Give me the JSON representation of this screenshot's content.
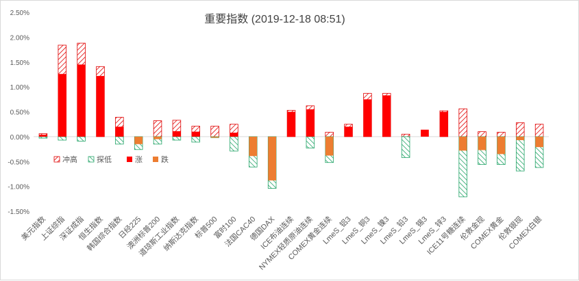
{
  "chart_data": {
    "type": "bar",
    "title": "重要指数 (2019-12-18 08:51)",
    "xlabel": "",
    "ylabel": "",
    "ylim": [
      -0.015,
      0.025
    ],
    "yticks": [
      -0.015,
      -0.01,
      -0.005,
      0,
      0.005,
      0.01,
      0.015,
      0.02,
      0.025
    ],
    "ytick_labels": [
      "-1.50%",
      "-1.00%",
      "-0.50%",
      "0.00%",
      "0.50%",
      "1.00%",
      "1.50%",
      "2.00%",
      "2.50%"
    ],
    "grid": false,
    "legend_position": "inside-left",
    "categories": [
      "美元指数",
      "上证综指",
      "深证成指",
      "恒生指数",
      "韩国综合指数",
      "日经225",
      "澳洲标普200",
      "道琼斯工业指数",
      "纳斯达克指数",
      "标普500",
      "富时100",
      "法国CAC40",
      "德国DAX",
      "ICE布油连续",
      "NYMEX轻质原油连续",
      "COMEX黄金连续",
      "LmeS_铝3",
      "LmeS_铜3",
      "LmeS_镍3",
      "LmeS_铅3",
      "LmeS_锡3",
      "LmeS_锌3",
      "ICE11号糖连续",
      "伦敦金现",
      "COMEX黄金",
      "伦敦银现",
      "COMEX白银"
    ],
    "series": [
      {
        "name": "冲高",
        "values": [
          0.0006,
          0.0184,
          0.0188,
          0.0141,
          0.0039,
          0.0,
          0.0032,
          0.0033,
          0.0021,
          0.0021,
          0.0025,
          0.0,
          0.0,
          0.0053,
          0.0062,
          0.0009,
          0.0025,
          0.0087,
          0.0087,
          0.0005,
          0.0,
          0.0052,
          0.0056,
          0.001,
          0.0009,
          0.0028,
          0.0025
        ]
      },
      {
        "name": "探低",
        "values": [
          -0.0003,
          -0.0007,
          -0.0009,
          0.0,
          -0.0015,
          -0.0026,
          -0.0015,
          -0.0007,
          -0.0011,
          -0.0002,
          -0.0029,
          -0.0061,
          -0.0104,
          0.0,
          -0.0023,
          -0.0052,
          0.0,
          0.0,
          0.0,
          -0.0042,
          0.0,
          0.0,
          -0.0121,
          -0.0056,
          -0.0056,
          -0.0069,
          -0.0062
        ]
      },
      {
        "name": "涨",
        "values": [
          0.0004,
          0.0126,
          0.0145,
          0.0122,
          0.002,
          0.0,
          0.0,
          0.0011,
          0.001,
          0.0,
          0.0008,
          0.0,
          0.0,
          0.005,
          0.0055,
          0.0,
          0.002,
          0.0075,
          0.0083,
          0.0,
          0.0014,
          0.005,
          0.0,
          0.0,
          0.0,
          0.0,
          0.0
        ]
      },
      {
        "name": "跌",
        "values": [
          0.0,
          0.0,
          0.0,
          0.0,
          0.0,
          -0.0015,
          -0.0005,
          0.0,
          0.0,
          -0.0002,
          0.0,
          -0.0039,
          -0.0088,
          0.0,
          0.0,
          -0.0038,
          0.0,
          0.0,
          0.0,
          0.0,
          0.0,
          0.0,
          -0.0028,
          -0.0027,
          -0.0035,
          -0.0007,
          -0.0021
        ]
      }
    ],
    "colors": {
      "high": "#e00000",
      "low": "#21a366",
      "rise": "#ff0000",
      "fall": "#ed7d31",
      "axis_text": "#595959",
      "axis_line": "#d9d9d9"
    }
  }
}
